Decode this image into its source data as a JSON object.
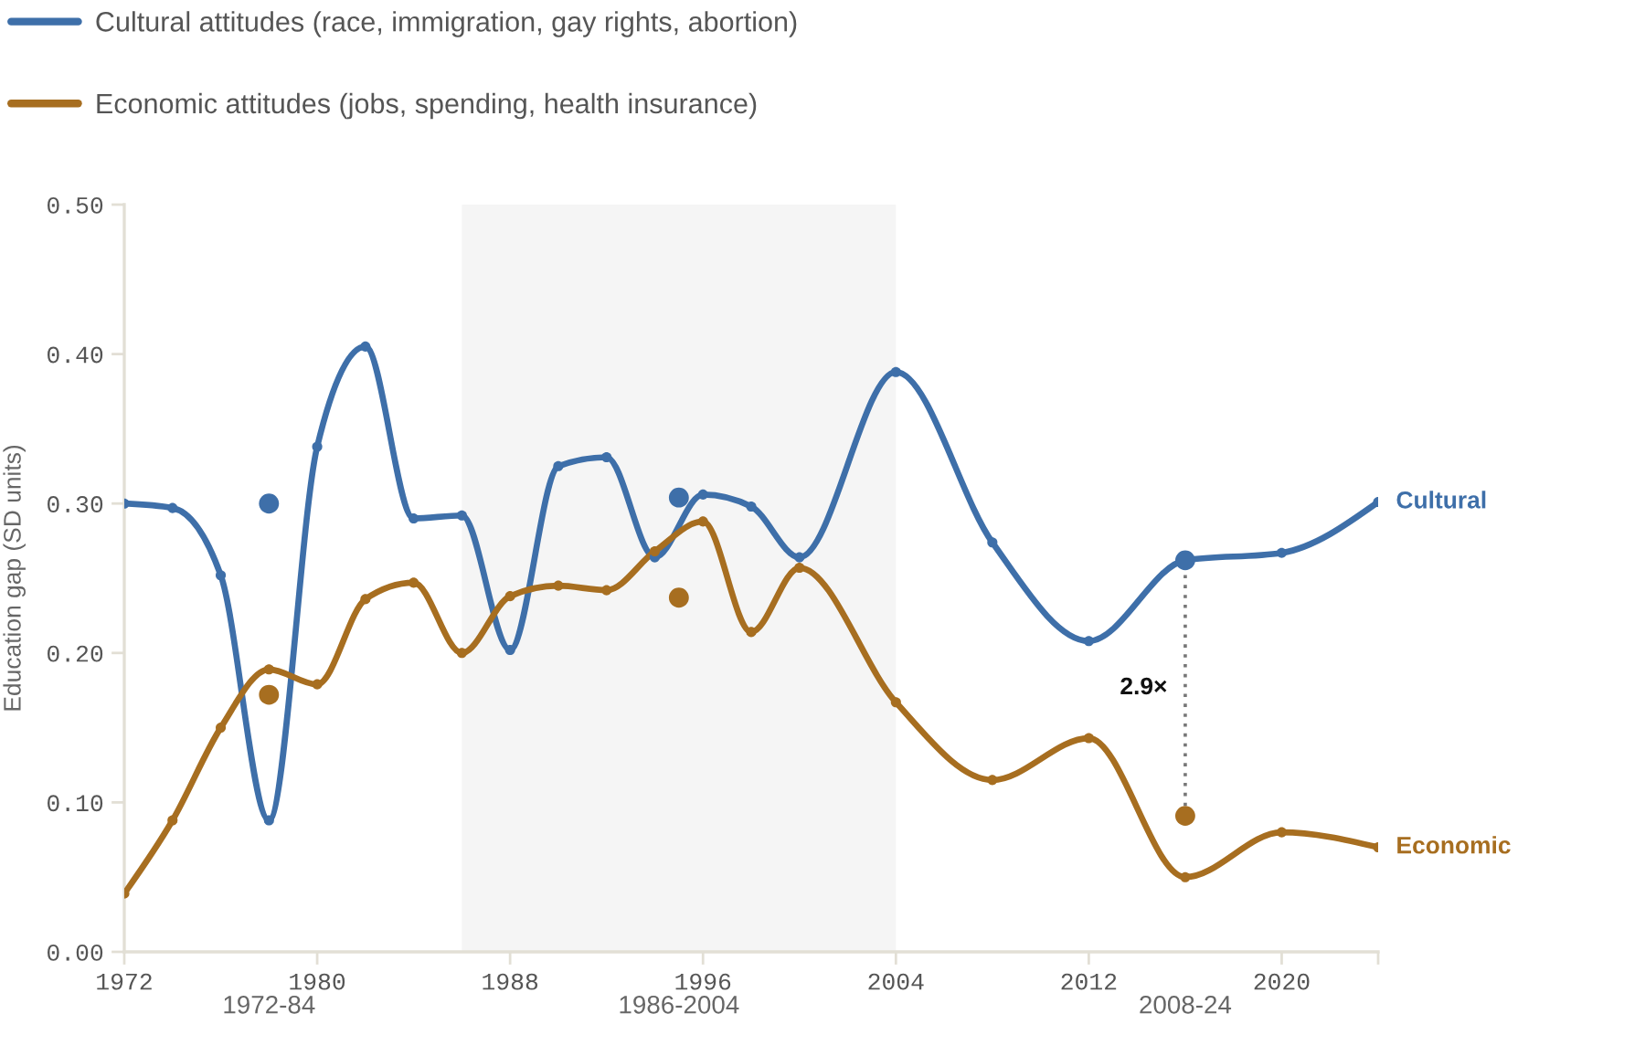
{
  "chart_data": {
    "type": "line",
    "ylabel": "Education gap (SD units)",
    "x": [
      1972,
      1974,
      1976,
      1978,
      1980,
      1982,
      1984,
      1986,
      1988,
      1990,
      1992,
      1994,
      1996,
      1998,
      2000,
      2004,
      2008,
      2012,
      2016,
      2020,
      2024
    ],
    "series": [
      {
        "name": "Cultural attitudes (race, immigration, gay rights, abortion)",
        "color": "#3e6fa9",
        "values": [
          0.3,
          0.297,
          0.252,
          0.088,
          0.338,
          0.405,
          0.29,
          0.292,
          0.202,
          0.325,
          0.331,
          0.264,
          0.306,
          0.298,
          0.264,
          0.388,
          0.274,
          0.208,
          0.262,
          0.267,
          0.301
        ]
      },
      {
        "name": "Economic attitudes (jobs, spending, health insurance)",
        "color": "#a76e20",
        "values": [
          0.039,
          0.088,
          0.15,
          0.189,
          0.179,
          0.236,
          0.247,
          0.2,
          0.238,
          0.245,
          0.242,
          0.268,
          0.288,
          0.214,
          0.257,
          0.167,
          0.115,
          0.143,
          0.05,
          0.08,
          0.07
        ]
      },
      {
        "type": "scatter",
        "color": "#3e6fa9",
        "x": [
          1978,
          1995,
          2016
        ],
        "values": [
          0.3,
          0.304,
          0.262
        ]
      },
      {
        "type": "scatter",
        "color": "#a76e20",
        "x": [
          1978,
          1995,
          2016
        ],
        "values": [
          0.172,
          0.237,
          0.091
        ]
      }
    ],
    "xlim": [
      1972,
      2024
    ],
    "xticks": [
      1972,
      1980,
      1988,
      1996,
      2004,
      2012,
      2020,
      {
        "value": 2024,
        "label": null
      }
    ],
    "ylim": [
      0,
      0.5
    ],
    "yticks": [
      {
        "value": 0,
        "label": "0.00"
      },
      {
        "value": 0.1,
        "label": "0.10"
      },
      {
        "value": 0.2,
        "label": "0.20"
      },
      {
        "value": 0.3,
        "label": "0.30"
      },
      {
        "value": 0.4,
        "label": "0.40"
      },
      {
        "value": 0.5,
        "label": "0.50"
      }
    ],
    "bands": [
      {
        "axis": "x",
        "from": 1986,
        "to": 2004,
        "label": "1986-2004",
        "color": "#f5f5f5"
      }
    ],
    "annotations": [
      "1972-84",
      "2008-24",
      {
        "text": "Cultural",
        "x": 2024,
        "y": 0.301
      },
      {
        "text": "Economic",
        "x": 2024,
        "y": 0.07
      },
      "2.9×"
    ],
    "marker": "circle",
    "legend": "top left"
  }
}
